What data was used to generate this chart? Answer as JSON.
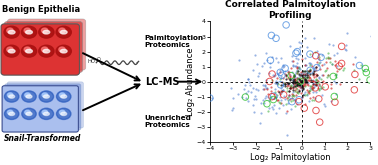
{
  "title": "Correlated Palmitoylation\nProfiling",
  "xlabel": "Log₂ Palmitoylation",
  "ylabel": "Log₂ Abundance",
  "xlim": [
    -4,
    3
  ],
  "ylim": [
    -4,
    4
  ],
  "xticks": [
    -4,
    -3,
    -2,
    -1,
    0,
    1,
    2,
    3
  ],
  "yticks": [
    -4,
    -3,
    -2,
    -1,
    0,
    1,
    2,
    3,
    4
  ],
  "seed": 42,
  "n_small_blue": 220,
  "n_small_red": 150,
  "n_small_green": 90,
  "n_small_black": 80,
  "n_large_blue": 20,
  "n_large_red": 18,
  "n_large_green": 10,
  "colors": {
    "blue": "#4477cc",
    "red": "#cc2222",
    "green": "#33aa33",
    "black": "#111111",
    "blue_open": "#4488dd",
    "red_open": "#dd2222",
    "green_open": "#22bb22"
  },
  "text_benign": "Benign Epithelia",
  "text_snail": "Snail-Transformed",
  "text_palm": "Palmitoylation\nProteomics",
  "text_unenrich": "Unenriched\nProteomics",
  "text_lcms": "LC-MS"
}
